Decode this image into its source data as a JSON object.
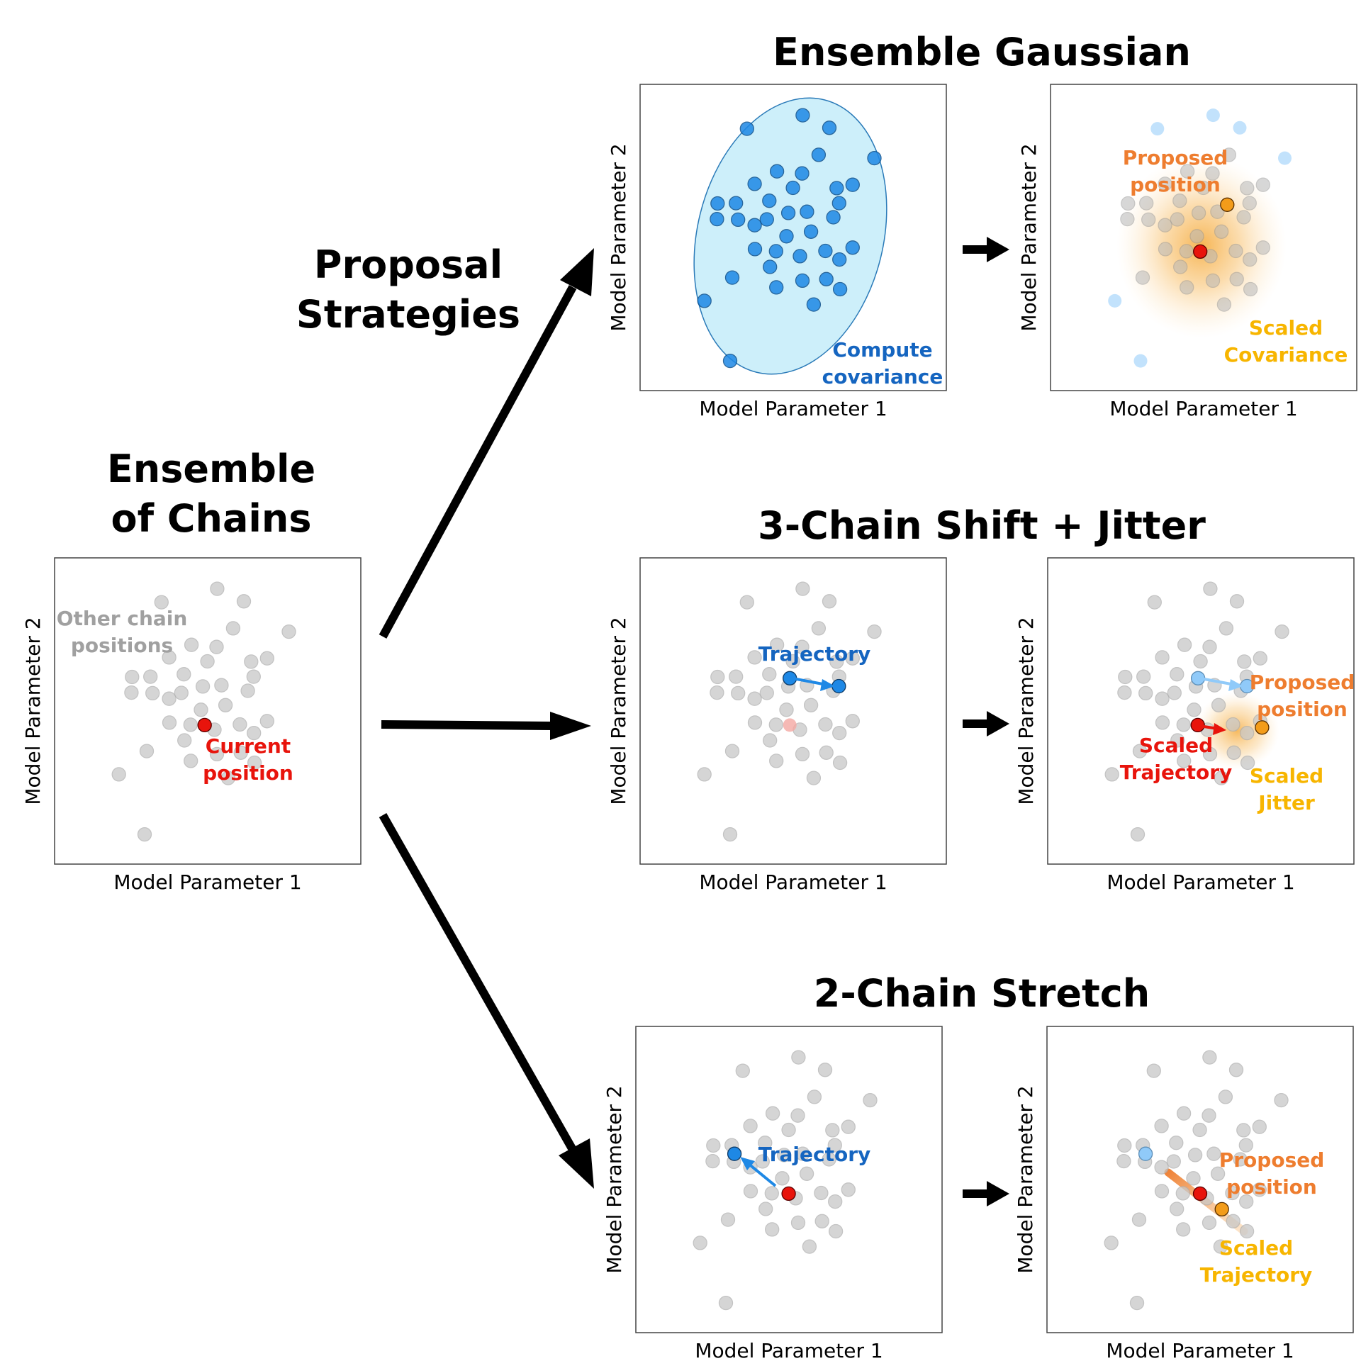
{
  "colors": {
    "gray_point": "#c8c8c8",
    "gray_text": "#a0a0a0",
    "blue": "#1e88e5",
    "blue_light": "#90caf9",
    "blue_text": "#1565c0",
    "red": "#e8140c",
    "orange": "#f39c1a",
    "orange_text": "#ee7d2f",
    "yellow_text": "#f7b500",
    "cov_fill": "#cdeffa"
  },
  "titles": {
    "main": "Ensemble Gaussian",
    "strategies_line1": "Proposal",
    "strategies_line2": "Strategies",
    "ensemble_line1": "Ensemble",
    "ensemble_line2": "of Chains",
    "shift": "3-Chain Shift + Jitter",
    "stretch": "2-Chain Stretch"
  },
  "axes": {
    "xlabel": "Model Parameter 1",
    "ylabel": "Model Parameter 2"
  },
  "annotations": {
    "other_line1": "Other chain",
    "other_line2": "positions",
    "current_line1": "Current",
    "current_line2": "position",
    "compute_line1": "Compute",
    "compute_line2": "covariance",
    "proposed_line1": "Proposed",
    "proposed_line2": "position",
    "scaled_line1": "Scaled",
    "covariance": "Covariance",
    "trajectory": "Trajectory",
    "jitter": "Jitter"
  },
  "icons": [
    "flow-arrow-icon",
    "step-arrow-icon"
  ]
}
